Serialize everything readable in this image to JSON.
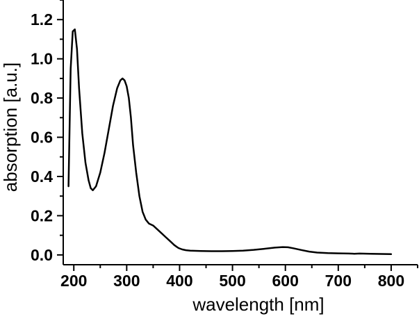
{
  "chart_data": {
    "type": "line",
    "title": "",
    "xlabel": "wavelength [nm]",
    "ylabel": "absorption [a.u.]",
    "xlim": [
      180,
      850
    ],
    "ylim": [
      -0.05,
      1.3
    ],
    "xticks": [
      200,
      300,
      400,
      500,
      600,
      700,
      800
    ],
    "xtick_labels": [
      "200",
      "300",
      "400",
      "500",
      "600",
      "700",
      "800"
    ],
    "yticks": [
      0.0,
      0.2,
      0.4,
      0.6,
      0.8,
      1.0,
      1.2
    ],
    "ytick_labels": [
      "0.0",
      "0.2",
      "0.4",
      "0.6",
      "0.8",
      "1.0",
      "1.2"
    ],
    "grid": false,
    "legend": "none",
    "series": [
      {
        "color": "#000000",
        "x": [
          190,
          194,
          198,
          202,
          206,
          210,
          216,
          222,
          228,
          232,
          236,
          242,
          250,
          258,
          266,
          274,
          282,
          288,
          292,
          296,
          300,
          304,
          308,
          312,
          318,
          324,
          330,
          336,
          342,
          350,
          358,
          366,
          374,
          382,
          390,
          398,
          405,
          412,
          420,
          440,
          460,
          480,
          500,
          520,
          540,
          560,
          580,
          595,
          605,
          615,
          630,
          645,
          660,
          680,
          700,
          720,
          730,
          740,
          760,
          780,
          800
        ],
        "y": [
          0.35,
          0.95,
          1.14,
          1.15,
          1.05,
          0.85,
          0.62,
          0.47,
          0.38,
          0.34,
          0.33,
          0.35,
          0.42,
          0.52,
          0.64,
          0.76,
          0.85,
          0.89,
          0.9,
          0.89,
          0.86,
          0.8,
          0.7,
          0.56,
          0.42,
          0.3,
          0.22,
          0.18,
          0.16,
          0.15,
          0.13,
          0.11,
          0.09,
          0.07,
          0.05,
          0.035,
          0.028,
          0.024,
          0.022,
          0.02,
          0.019,
          0.019,
          0.02,
          0.022,
          0.026,
          0.031,
          0.037,
          0.04,
          0.039,
          0.034,
          0.025,
          0.017,
          0.012,
          0.009,
          0.008,
          0.007,
          0.006,
          0.007,
          0.006,
          0.005,
          0.004
        ]
      }
    ]
  }
}
